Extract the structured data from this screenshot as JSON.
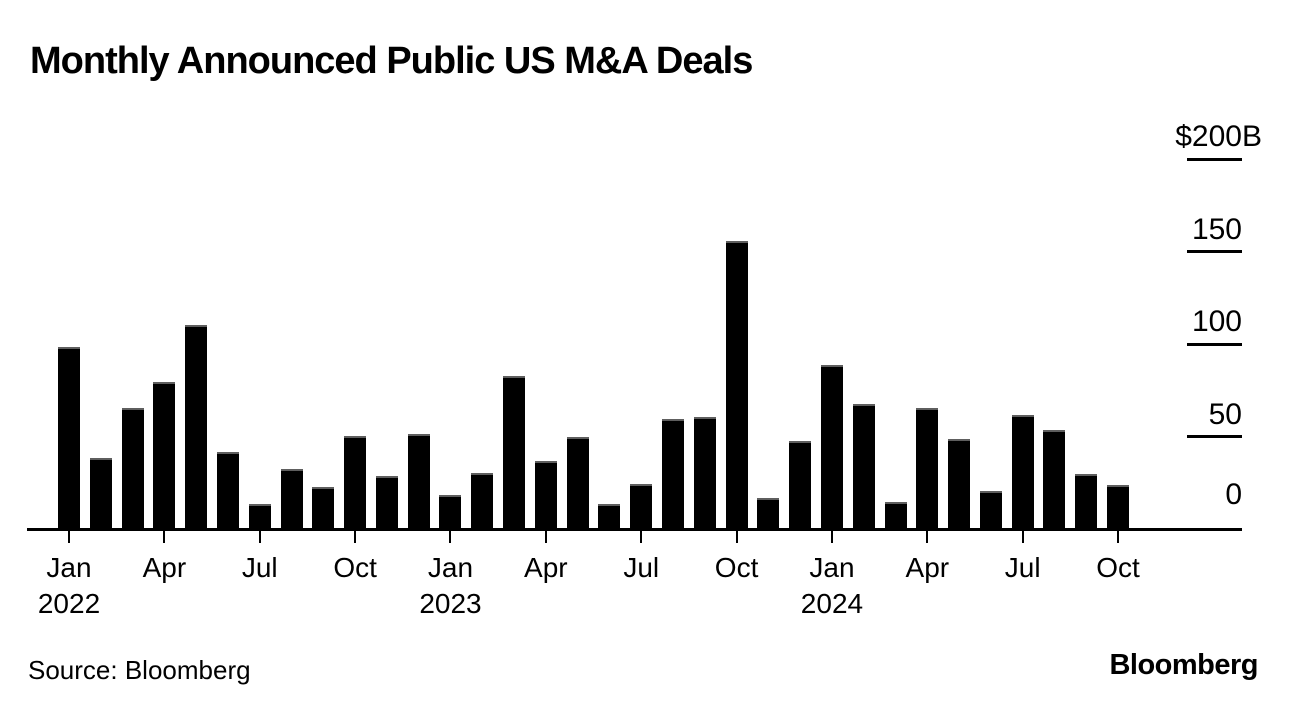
{
  "title": "Monthly Announced Public US M&A Deals",
  "source": "Source: Bloomberg",
  "logo": "Bloomberg",
  "colors": {
    "background": "#ffffff",
    "bar": "#000000",
    "bar_cap": "#5e5e5e",
    "axis": "#000000",
    "text": "#000000"
  },
  "chart_data": {
    "type": "bar",
    "title": "Monthly Announced Public US M&A Deals",
    "unit": "USD billions",
    "grid": false,
    "legend": null,
    "ylim": [
      0,
      200
    ],
    "y_axis_side": "right",
    "categories": [
      "Jan 2022",
      "Feb 2022",
      "Mar 2022",
      "Apr 2022",
      "May 2022",
      "Jun 2022",
      "Jul 2022",
      "Aug 2022",
      "Sep 2022",
      "Oct 2022",
      "Nov 2022",
      "Dec 2022",
      "Jan 2023",
      "Feb 2023",
      "Mar 2023",
      "Apr 2023",
      "May 2023",
      "Jun 2023",
      "Jul 2023",
      "Aug 2023",
      "Sep 2023",
      "Oct 2023",
      "Nov 2023",
      "Dec 2023",
      "Jan 2024",
      "Feb 2024",
      "Mar 2024",
      "Apr 2024",
      "May 2024",
      "Jun 2024",
      "Jul 2024",
      "Aug 2024",
      "Sep 2024",
      "Oct 2024"
    ],
    "values": [
      98,
      38,
      65,
      79,
      110,
      41,
      13,
      32,
      22,
      50,
      28,
      51,
      18,
      30,
      82,
      36,
      49,
      13,
      24,
      59,
      60,
      155,
      16,
      47,
      88,
      67,
      14,
      65,
      48,
      20,
      61,
      53,
      29,
      23
    ],
    "y_axis": {
      "ticks": [
        {
          "text": "$200",
          "suffix": "B",
          "value": 200
        },
        {
          "text": "150",
          "value": 150
        },
        {
          "text": "100",
          "value": 100
        },
        {
          "text": "50",
          "value": 50
        },
        {
          "text": "0",
          "value": 0
        }
      ]
    },
    "x_axis": {
      "ticks": [
        {
          "month": "Jan",
          "year": "2022",
          "index": 0
        },
        {
          "month": "Apr",
          "index": 3
        },
        {
          "month": "Jul",
          "index": 6
        },
        {
          "month": "Oct",
          "index": 9
        },
        {
          "month": "Jan",
          "year": "2023",
          "index": 12
        },
        {
          "month": "Apr",
          "index": 15
        },
        {
          "month": "Jul",
          "index": 18
        },
        {
          "month": "Oct",
          "index": 21
        },
        {
          "month": "Jan",
          "year": "2024",
          "index": 24
        },
        {
          "month": "Apr",
          "index": 27
        },
        {
          "month": "Jul",
          "index": 30
        },
        {
          "month": "Oct",
          "index": 33
        }
      ]
    }
  }
}
